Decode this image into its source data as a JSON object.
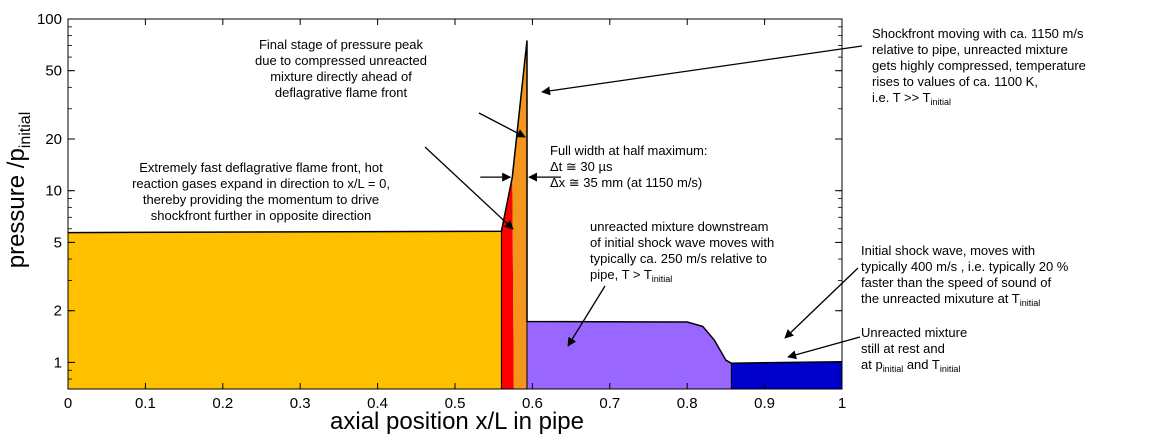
{
  "chart_data": {
    "type": "area",
    "xlabel": "axial position x/L in pipe",
    "ylabel_main": "pressure /p",
    "ylabel_sub": "initial",
    "xlim": [
      0,
      1
    ],
    "ylim": [
      0.7,
      100
    ],
    "y_scale": "log",
    "grid": false,
    "x_ticks": [
      "0",
      "0.1",
      "0.2",
      "0.3",
      "0.4",
      "0.5",
      "0.6",
      "0.7",
      "0.8",
      "0.9",
      "1"
    ],
    "y_ticks": [
      "1",
      "2",
      "5",
      "10",
      "20",
      "50",
      "100"
    ],
    "regions": [
      {
        "name": "burnt gases",
        "color": "#FFC000",
        "points": [
          [
            0,
            5.7
          ],
          [
            0.56,
            5.8
          ],
          [
            0.56,
            0.7
          ],
          [
            0,
            0.7
          ]
        ]
      },
      {
        "name": "deflagrative flame front",
        "color": "#FF0000",
        "points": [
          [
            0.56,
            0.7
          ],
          [
            0.56,
            5.8
          ],
          [
            0.574,
            12
          ],
          [
            0.576,
            0.7
          ]
        ]
      },
      {
        "name": "pressure peak",
        "color": "#F5961C",
        "points": [
          [
            0.576,
            0.7
          ],
          [
            0.574,
            12
          ],
          [
            0.593,
            75
          ],
          [
            0.593,
            0.7
          ]
        ]
      },
      {
        "name": "unreacted mixture downstream",
        "color": "#9966FF",
        "points": [
          [
            0.593,
            0.7
          ],
          [
            0.593,
            1.73
          ],
          [
            0.8,
            1.72
          ],
          [
            0.82,
            1.62
          ],
          [
            0.835,
            1.35
          ],
          [
            0.85,
            1.03
          ],
          [
            0.857,
            0.99
          ],
          [
            0.857,
            0.7
          ]
        ]
      },
      {
        "name": "unreacted mixture at rest",
        "color": "#0000CC",
        "points": [
          [
            0.857,
            0.7
          ],
          [
            0.857,
            0.99
          ],
          [
            1.0,
            1.01
          ],
          [
            1.0,
            0.7
          ]
        ]
      }
    ],
    "outline": [
      [
        0,
        5.7
      ],
      [
        0.56,
        5.8
      ],
      [
        0.574,
        12
      ],
      [
        0.593,
        75
      ],
      [
        0.593,
        1.73
      ],
      [
        0.8,
        1.72
      ],
      [
        0.82,
        1.62
      ],
      [
        0.835,
        1.35
      ],
      [
        0.85,
        1.03
      ],
      [
        0.857,
        0.99
      ],
      [
        1.0,
        1.01
      ]
    ],
    "fwhm_marker_x": [
      0.574,
      0.593
    ],
    "fwhm_marker_y": 12
  },
  "annotations": {
    "peak": {
      "l1": "Final stage of pressure peak",
      "l2": "due to compressed unreacted",
      "l3": "mixture directly ahead of",
      "l4": "deflagrative flame front"
    },
    "flame": {
      "l1": "Extremely fast deflagrative flame front, hot",
      "l2": "reaction gases expand in direction to x/L = 0,",
      "l3": "thereby providing the momentum to drive",
      "l4": "shockfront further in opposite direction"
    },
    "fwhm": {
      "title": "Full width at half maximum:",
      "dt": "Δt ≅ 30 µs",
      "dx": "Δx ≅  35 mm (at 1150 m/s)"
    },
    "shockfront": {
      "l1": "Shockfront moving with ca. 1150 m/s",
      "l2": "relative to pipe, unreacted mixture",
      "l3": "gets highly compressed, temperature",
      "l4": "rises to values of ca. 1100 K,",
      "l5_main": "i.e. T >> T",
      "l5_sub": "initial"
    },
    "downstream": {
      "l1": "unreacted mixture downstream",
      "l2": "of initial shock wave moves with",
      "l3": "typically ca. 250 m/s relative to",
      "l4_main": "pipe, T > T",
      "l4_sub": "initial"
    },
    "initial_shock": {
      "l1": "Initial shock wave, moves with",
      "l2": "typically 400 m/s , i.e. typically 20 %",
      "l3": "faster than the speed of sound of",
      "l4_main": "the unreacted mixuture at T",
      "l4_sub": "initial"
    },
    "rest": {
      "l1": "Unreacted mixture",
      "l2": "still at rest and",
      "l3_a": "at p",
      "l3_sub1": "initial",
      "l3_b": " and T",
      "l3_sub2": "initial"
    }
  }
}
